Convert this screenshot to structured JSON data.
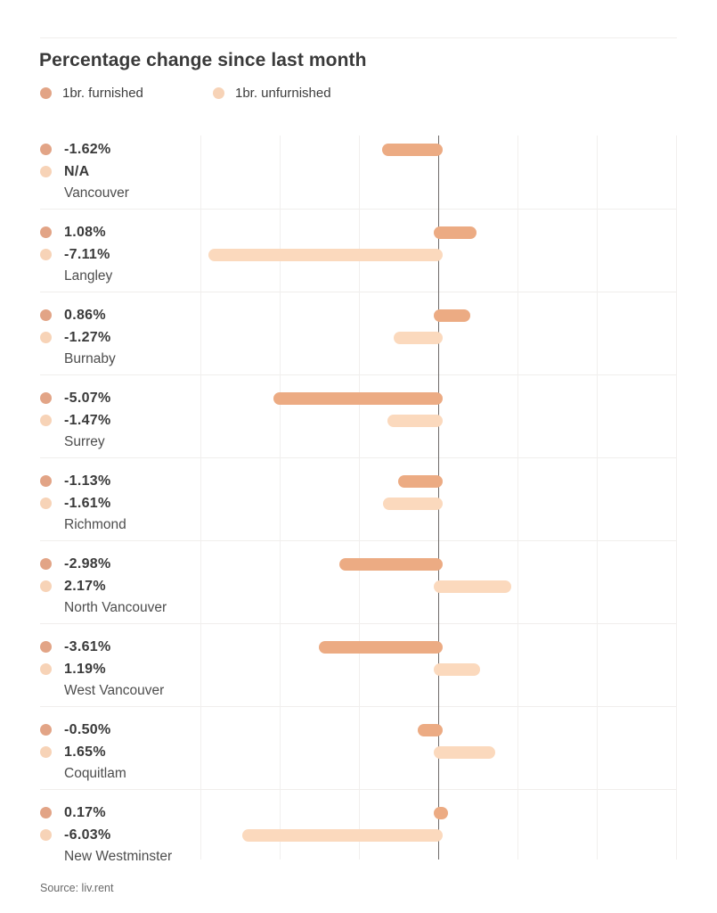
{
  "header": {
    "title": "Percentage change since last month"
  },
  "legend": {
    "furnished_label": "1br. furnished",
    "unfurnished_label": "1br. unfurnished"
  },
  "footer": {
    "source": "Source: liv.rent"
  },
  "colors": {
    "furnished": "#e2a486",
    "unfurnished": "#f7d3b7",
    "furnished_bar": "#ecab83",
    "unfurnished_bar": "#fbd9bd",
    "axis": "#6e6a68",
    "gridline": "#f1efee",
    "separator": "#f0eeec",
    "title_text": "#3a3a3a",
    "city_text": "#4d4d4d",
    "source_text": "#696969"
  },
  "chart_data": {
    "type": "bar",
    "orientation": "horizontal",
    "title": "Percentage change since last month",
    "categories": [
      "Vancouver",
      "Langley",
      "Burnaby",
      "Surrey",
      "Richmond",
      "North Vancouver",
      "West Vancouver",
      "Coquitlam",
      "New Westminster"
    ],
    "series": [
      {
        "name": "1br. furnished",
        "values": [
          -1.62,
          1.08,
          0.86,
          -5.07,
          -1.13,
          -2.98,
          -3.61,
          -0.5,
          0.17
        ],
        "labels": [
          "-1.62%",
          "1.08%",
          "0.86%",
          "-5.07%",
          "-1.13%",
          "-2.98%",
          "-3.61%",
          "-0.50%",
          "0.17%"
        ]
      },
      {
        "name": "1br. unfurnished",
        "values": [
          null,
          -7.11,
          -1.27,
          -1.47,
          -1.61,
          2.17,
          1.19,
          1.65,
          -6.03
        ],
        "labels": [
          "N/A",
          "-7.11%",
          "-1.27%",
          "-1.47%",
          "-1.61%",
          "2.17%",
          "1.19%",
          "1.65%",
          "-6.03%"
        ]
      }
    ],
    "xlabel": "",
    "ylabel": "",
    "xlim": [
      -7.5,
      7.5
    ],
    "gridline_step": 2.5,
    "zero_axis": true,
    "grid": true,
    "legend_position": "top",
    "source": "Source: liv.rent"
  }
}
